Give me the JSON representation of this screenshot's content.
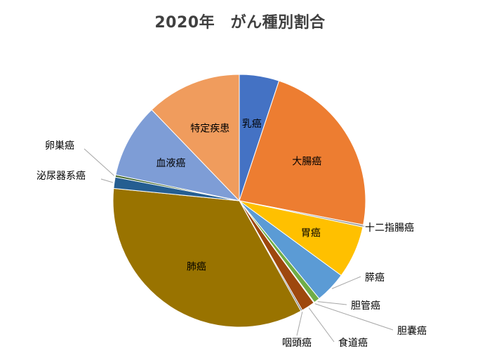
{
  "chart_data": {
    "type": "pie",
    "title": "2020年　がん種別割合",
    "start_angle_deg": 0,
    "direction": "clockwise",
    "slices": [
      {
        "label": "乳癌",
        "value": 5.3,
        "color": "#4472C4"
      },
      {
        "label": "大腸癌",
        "value": 23.9,
        "color": "#ED7D31"
      },
      {
        "label": "十二指腸癌",
        "value": 0.3,
        "color": "#A5A5A5"
      },
      {
        "label": "胃癌",
        "value": 7.0,
        "color": "#FFC000"
      },
      {
        "label": "膵癌",
        "value": 4.2,
        "color": "#5B9BD5"
      },
      {
        "label": "胆管癌",
        "value": 0.8,
        "color": "#70AD47"
      },
      {
        "label": "胆嚢癌",
        "value": 0.1,
        "color": "#264478"
      },
      {
        "label": "食道癌",
        "value": 1.8,
        "color": "#9E480E"
      },
      {
        "label": "咽頭癌",
        "value": 0.2,
        "color": "#636363"
      },
      {
        "label": "肺癌",
        "value": 36.1,
        "color": "#997300"
      },
      {
        "label": "泌尿器系癌",
        "value": 1.5,
        "color": "#255E91"
      },
      {
        "label": "卵巣癌",
        "value": 0.3,
        "color": "#43682B"
      },
      {
        "label": "血液癌",
        "value": 9.9,
        "color": "#7E9DD6"
      },
      {
        "label": "特定疾患",
        "value": 12.7,
        "color": "#F09C5D"
      }
    ]
  }
}
